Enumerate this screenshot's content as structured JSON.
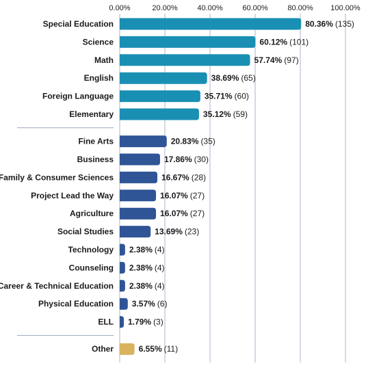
{
  "chart_data": {
    "type": "bar",
    "orientation": "horizontal",
    "title": "",
    "xlabel": "",
    "ylabel": "",
    "xlim": [
      0,
      100
    ],
    "x_ticks": [
      "0.00%",
      "20.00%",
      "40.00%",
      "60.00%",
      "80.00%",
      "100.00%"
    ],
    "grid": true,
    "groups": [
      {
        "color": "#1a8fb4",
        "items": [
          {
            "label": "Special Education",
            "value": 80.36,
            "value_label": "80.36%",
            "count_label": "(135)"
          },
          {
            "label": "Science",
            "value": 60.12,
            "value_label": "60.12%",
            "count_label": "(101)"
          },
          {
            "label": "Math",
            "value": 57.74,
            "value_label": "57.74%",
            "count_label": "(97)"
          },
          {
            "label": "English",
            "value": 38.69,
            "value_label": "38.69%",
            "count_label": "(65)"
          },
          {
            "label": "Foreign Language",
            "value": 35.71,
            "value_label": "35.71%",
            "count_label": "(60)"
          },
          {
            "label": "Elementary",
            "value": 35.12,
            "value_label": "35.12%",
            "count_label": "(59)"
          }
        ]
      },
      {
        "color": "#2f5596",
        "items": [
          {
            "label": "Fine Arts",
            "value": 20.83,
            "value_label": "20.83%",
            "count_label": "(35)"
          },
          {
            "label": "Business",
            "value": 17.86,
            "value_label": "17.86%",
            "count_label": "(30)"
          },
          {
            "label": "Family & Consumer Sciences",
            "value": 16.67,
            "value_label": "16.67%",
            "count_label": "(28)"
          },
          {
            "label": "Project Lead the Way",
            "value": 16.07,
            "value_label": "16.07%",
            "count_label": "(27)"
          },
          {
            "label": "Agriculture",
            "value": 16.07,
            "value_label": "16.07%",
            "count_label": "(27)"
          },
          {
            "label": "Social Studies",
            "value": 13.69,
            "value_label": "13.69%",
            "count_label": "(23)"
          },
          {
            "label": "Technology",
            "value": 2.38,
            "value_label": "2.38%",
            "count_label": "(4)"
          },
          {
            "label": "Counseling",
            "value": 2.38,
            "value_label": "2.38%",
            "count_label": "(4)"
          },
          {
            "label": "Career & Technical Education",
            "value": 2.38,
            "value_label": "2.38%",
            "count_label": "(4)"
          },
          {
            "label": "Physical Education",
            "value": 3.57,
            "value_label": "3.57%",
            "count_label": "(6)"
          },
          {
            "label": "ELL",
            "value": 1.79,
            "value_label": "1.79%",
            "count_label": "(3)"
          }
        ]
      },
      {
        "color": "#d9b25e",
        "items": [
          {
            "label": "Other",
            "value": 6.55,
            "value_label": "6.55%",
            "count_label": "(11)"
          }
        ]
      }
    ]
  },
  "colors": {
    "gridline": "#aab5cc",
    "separator": "#9aa6bd",
    "text": "#1a1a1a"
  }
}
